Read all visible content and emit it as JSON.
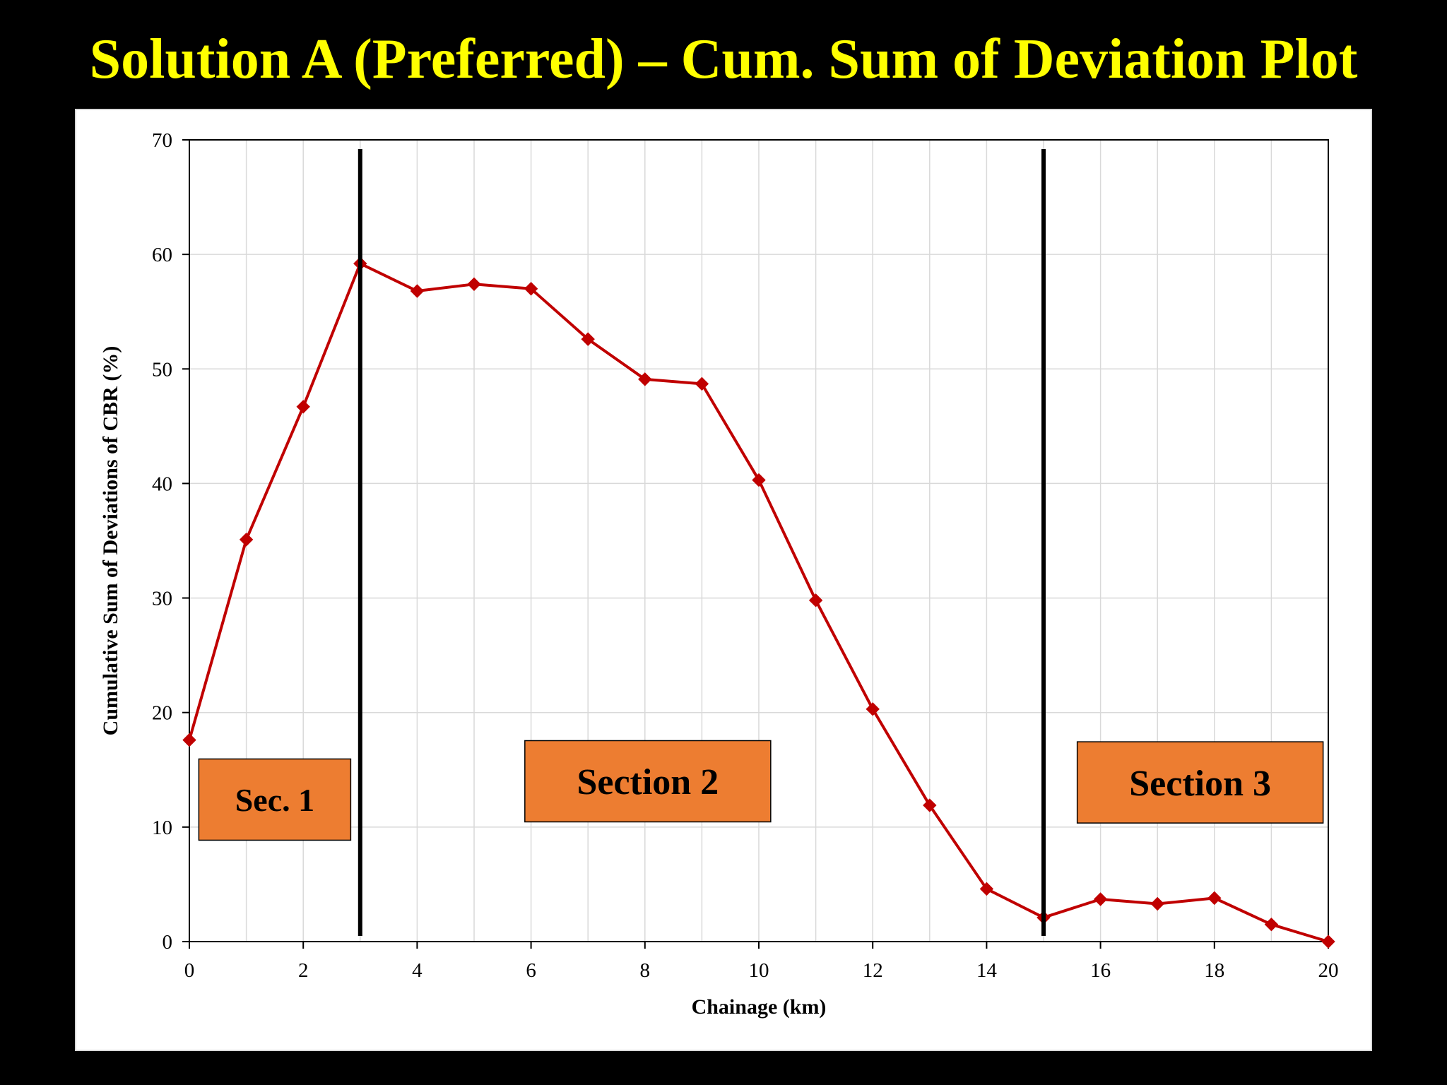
{
  "title": "Solution A (Preferred) – Cum. Sum of Deviation Plot",
  "colors": {
    "background": "#000000",
    "title": "#ffff00",
    "series": "#c00000",
    "section_box": "#ed7d31",
    "boundary_line": "#000000"
  },
  "chart_data": {
    "type": "line",
    "xlabel": "Chainage (km)",
    "ylabel": "Cumulative Sum of Deviations of CBR (%)",
    "xlim": [
      0,
      20
    ],
    "ylim": [
      0,
      70
    ],
    "x_ticks": [
      0,
      2,
      4,
      6,
      8,
      10,
      12,
      14,
      16,
      18,
      20
    ],
    "y_ticks": [
      0,
      10,
      20,
      30,
      40,
      50,
      60,
      70
    ],
    "grid": true,
    "marker": "diamond",
    "series": [
      {
        "x": [
          0,
          1,
          2,
          3,
          4,
          5,
          6,
          7,
          8,
          9,
          10,
          11,
          12,
          13,
          14,
          15,
          16,
          17,
          18,
          19,
          20
        ],
        "values": [
          17.6,
          35.1,
          46.7,
          59.2,
          56.8,
          57.4,
          57.0,
          52.6,
          49.1,
          48.7,
          40.3,
          29.8,
          20.3,
          11.9,
          4.6,
          2.1,
          3.7,
          3.3,
          3.8,
          1.5,
          0.0
        ]
      }
    ],
    "section_boundaries": [
      3,
      15
    ],
    "annotations": [
      {
        "label": "Sec. 1",
        "x": 1.5,
        "y": 12.4
      },
      {
        "label": "Section 2",
        "x": 8.05,
        "y": 14.0
      },
      {
        "label": "Section 3",
        "x": 17.75,
        "y": 13.9
      }
    ]
  }
}
